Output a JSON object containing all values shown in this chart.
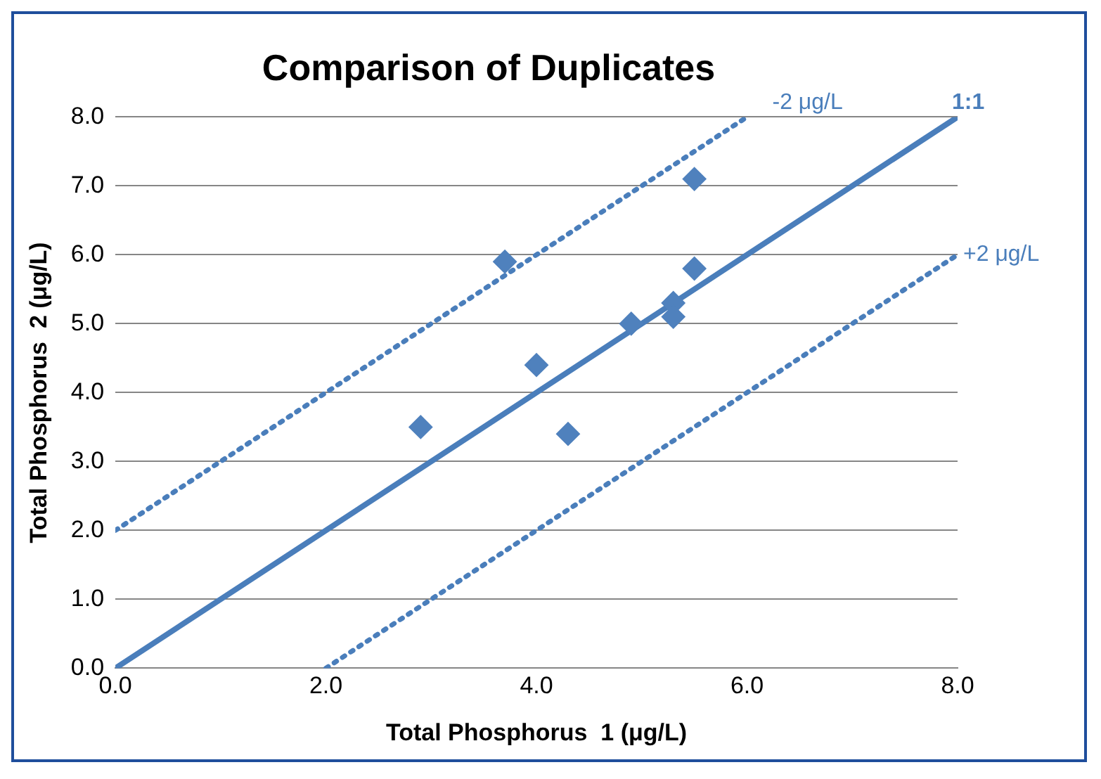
{
  "chart_data": {
    "type": "scatter",
    "title": "Comparison of Duplicates",
    "xlabel": "Total Phosphorus  1 (μg/L)",
    "ylabel": "Total Phosphorus  2 (μg/L)",
    "xlim": [
      0,
      8
    ],
    "xticks": [
      {
        "value": 0,
        "label": "0.0"
      },
      {
        "value": 2,
        "label": "2.0"
      },
      {
        "value": 4,
        "label": "4.0"
      },
      {
        "value": 6,
        "label": "6.0"
      },
      {
        "value": 8,
        "label": "8.0"
      }
    ],
    "ylim": [
      0,
      8
    ],
    "yticks": [
      {
        "value": 0,
        "label": "0.0"
      },
      {
        "value": 1,
        "label": "1.0"
      },
      {
        "value": 2,
        "label": "2.0"
      },
      {
        "value": 3,
        "label": "3.0"
      },
      {
        "value": 4,
        "label": "4.0"
      },
      {
        "value": 5,
        "label": "5.0"
      },
      {
        "value": 6,
        "label": "6.0"
      },
      {
        "value": 7,
        "label": "7.0"
      },
      {
        "value": 8,
        "label": "8.0"
      }
    ],
    "grid": "y",
    "legend": false,
    "marker": "diamond",
    "series": [
      {
        "color": "#4f81bd",
        "x": [
          2.9,
          3.7,
          4.0,
          4.3,
          4.9,
          5.3,
          5.3,
          5.5,
          5.5
        ],
        "values": [
          3.5,
          5.9,
          4.4,
          3.4,
          5.0,
          5.3,
          5.1,
          7.1,
          5.8
        ]
      },
      {
        "type": "line",
        "name": "1:1",
        "color": "#4a7ebb",
        "line_style": "solid",
        "marker": "none",
        "x": [
          0,
          8
        ],
        "values": [
          0,
          8
        ]
      },
      {
        "type": "line",
        "name": "-2 μg/L",
        "color": "#4a7ebb",
        "line_style": "dotted",
        "marker": "none",
        "x": [
          0,
          6
        ],
        "values": [
          2,
          8
        ]
      },
      {
        "type": "line",
        "name": "+2 μg/L",
        "color": "#4a7ebb",
        "line_style": "dotted",
        "marker": "none",
        "x": [
          2,
          8
        ],
        "values": [
          0,
          6
        ]
      }
    ]
  }
}
